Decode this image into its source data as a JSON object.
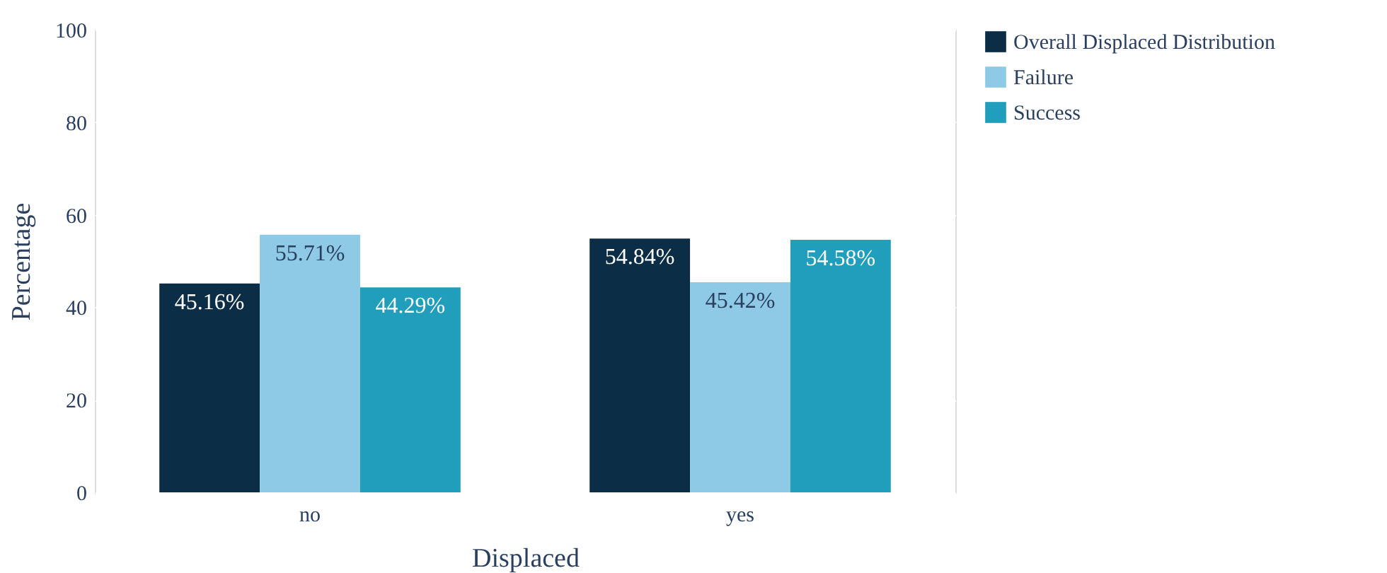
{
  "chart_data": {
    "type": "bar",
    "xlabel": "Displaced",
    "ylabel": "Percentage",
    "categories": [
      "no",
      "yes"
    ],
    "series": [
      {
        "name": "Overall Displaced Distribution",
        "color": "#0b2d45",
        "values": [
          45.16,
          54.84
        ],
        "value_labels": [
          "45.16%",
          "54.84%"
        ]
      },
      {
        "name": "Failure",
        "color": "#8ecae6",
        "values": [
          55.71,
          45.42
        ],
        "value_labels": [
          "55.71%",
          "45.42%"
        ]
      },
      {
        "name": "Success",
        "color": "#219ebc",
        "values": [
          44.29,
          54.58
        ],
        "value_labels": [
          "44.29%",
          "54.58%"
        ]
      }
    ],
    "ylim": [
      0,
      100
    ],
    "yticks": [
      0,
      20,
      40,
      60,
      80,
      100
    ],
    "grid": "y",
    "legend": "top right"
  }
}
